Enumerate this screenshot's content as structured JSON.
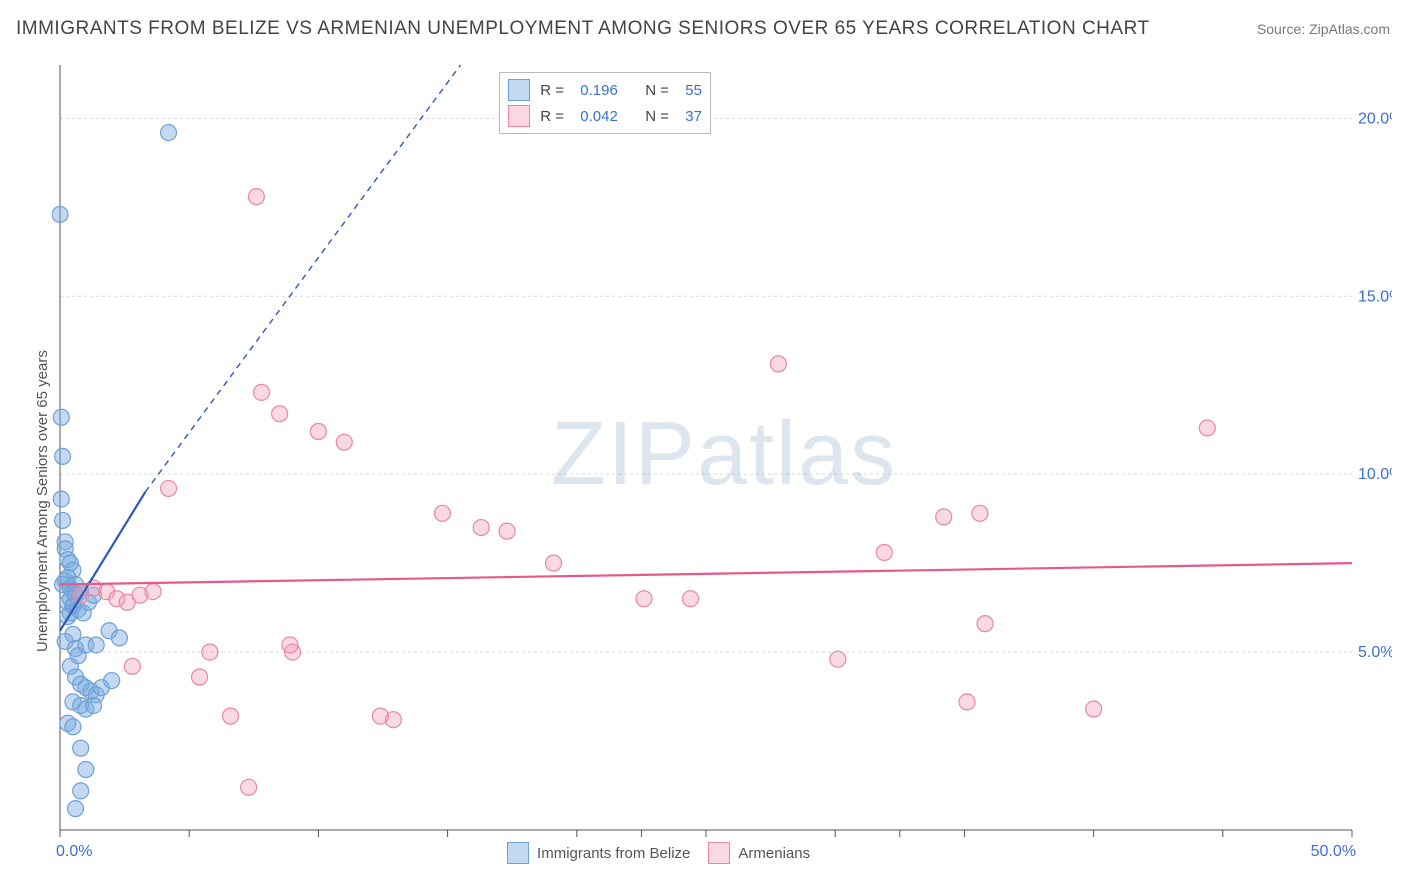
{
  "title": "IMMIGRANTS FROM BELIZE VS ARMENIAN UNEMPLOYMENT AMONG SENIORS OVER 65 YEARS CORRELATION CHART",
  "source_label": "Source: ZipAtlas.com",
  "watermark_text": "ZIPatlas",
  "ylabel": "Unemployment Among Seniors over 65 years",
  "chart": {
    "type": "scatter",
    "x_domain": [
      0,
      50
    ],
    "y_domain": [
      0,
      21.5
    ],
    "x_ticks": [
      0,
      5,
      10,
      15,
      20,
      22.5,
      25,
      30,
      32.5,
      35,
      40,
      45,
      50
    ],
    "x_tick_labels": {
      "0": "0.0%",
      "50": "50.0%"
    },
    "y_ticks": [
      5,
      10,
      15,
      20
    ],
    "y_tick_labels": {
      "5": "5.0%",
      "10": "10.0%",
      "15": "15.0%",
      "20": "20.0%"
    },
    "grid_color": "#d9d9d9",
    "axis_color": "#555555",
    "tick_label_color": "#3b6fd6",
    "background_color": "#ffffff"
  },
  "series": [
    {
      "id": "belize",
      "label": "Immigrants from Belize",
      "marker_radius": 8,
      "fill": "rgba(120,170,225,0.45)",
      "stroke": "#6fa0d6",
      "trend_stroke": "#2f59b6",
      "trend_stroke_width": 2.2,
      "trend": {
        "x1": 0,
        "y1": 5.6,
        "x2": 3.3,
        "y2": 9.5,
        "x2_dash_to": 15.5,
        "y2_dash_to": 21.5
      },
      "points": [
        [
          0,
          17.3
        ],
        [
          0.05,
          11.6
        ],
        [
          0.1,
          10.5
        ],
        [
          0.05,
          9.3
        ],
        [
          0.1,
          8.7
        ],
        [
          0.2,
          8.1
        ],
        [
          0.2,
          7.9
        ],
        [
          0.3,
          7.6
        ],
        [
          0.4,
          7.5
        ],
        [
          0.5,
          7.3
        ],
        [
          0.3,
          7.1
        ],
        [
          0.2,
          7.0
        ],
        [
          0.1,
          6.9
        ],
        [
          0.4,
          6.8
        ],
        [
          0.5,
          6.7
        ],
        [
          0.6,
          6.6
        ],
        [
          0.4,
          6.5
        ],
        [
          0.3,
          6.4
        ],
        [
          0.5,
          6.3
        ],
        [
          0.7,
          6.2
        ],
        [
          0.4,
          6.1
        ],
        [
          0.3,
          6.0
        ],
        [
          0.5,
          5.5
        ],
        [
          0.2,
          5.3
        ],
        [
          0.6,
          5.1
        ],
        [
          0.7,
          4.9
        ],
        [
          1.0,
          5.2
        ],
        [
          1.4,
          5.2
        ],
        [
          1.9,
          5.6
        ],
        [
          2.3,
          5.4
        ],
        [
          0.4,
          4.6
        ],
        [
          0.6,
          4.3
        ],
        [
          0.8,
          4.1
        ],
        [
          1.0,
          4.0
        ],
        [
          1.2,
          3.9
        ],
        [
          1.4,
          3.8
        ],
        [
          0.5,
          3.6
        ],
        [
          0.8,
          3.5
        ],
        [
          1.0,
          3.4
        ],
        [
          1.3,
          3.5
        ],
        [
          1.6,
          4.0
        ],
        [
          2.0,
          4.2
        ],
        [
          0.3,
          3.0
        ],
        [
          0.5,
          2.9
        ],
        [
          0.8,
          2.3
        ],
        [
          1.0,
          1.7
        ],
        [
          0.8,
          1.1
        ],
        [
          0.6,
          0.6
        ],
        [
          4.2,
          19.6
        ],
        [
          0.6,
          6.9
        ],
        [
          0.8,
          6.7
        ],
        [
          0.5,
          6.3
        ],
        [
          0.9,
          6.1
        ],
        [
          1.1,
          6.4
        ],
        [
          1.3,
          6.6
        ]
      ]
    },
    {
      "id": "armenian",
      "label": "Armenians",
      "marker_radius": 8,
      "fill": "rgba(245,160,185,0.40)",
      "stroke": "#e787a3",
      "trend_stroke": "#e65a87",
      "trend_stroke_width": 2.2,
      "trend": {
        "x1": 0,
        "y1": 6.9,
        "x2": 50,
        "y2": 7.5
      },
      "points": [
        [
          0.8,
          6.6
        ],
        [
          1.3,
          6.8
        ],
        [
          1.8,
          6.7
        ],
        [
          2.2,
          6.5
        ],
        [
          2.6,
          6.4
        ],
        [
          3.1,
          6.6
        ],
        [
          3.6,
          6.7
        ],
        [
          4.2,
          9.6
        ],
        [
          7.6,
          17.8
        ],
        [
          7.3,
          1.2
        ],
        [
          6.6,
          3.2
        ],
        [
          5.8,
          5.0
        ],
        [
          5.4,
          4.3
        ],
        [
          2.8,
          4.6
        ],
        [
          9.0,
          5.0
        ],
        [
          8.9,
          5.2
        ],
        [
          8.5,
          11.7
        ],
        [
          10.0,
          11.2
        ],
        [
          7.8,
          12.3
        ],
        [
          11.0,
          10.9
        ],
        [
          14.8,
          8.9
        ],
        [
          16.3,
          8.5
        ],
        [
          19.1,
          7.5
        ],
        [
          12.9,
          3.1
        ],
        [
          12.4,
          3.2
        ],
        [
          22.6,
          6.5
        ],
        [
          27.8,
          13.1
        ],
        [
          31.9,
          7.8
        ],
        [
          34.2,
          8.8
        ],
        [
          30.1,
          4.8
        ],
        [
          35.1,
          3.6
        ],
        [
          35.8,
          5.8
        ],
        [
          40.0,
          3.4
        ],
        [
          44.4,
          11.3
        ],
        [
          35.6,
          8.9
        ],
        [
          17.3,
          8.4
        ],
        [
          24.4,
          6.5
        ]
      ]
    }
  ],
  "legend_top": {
    "rows": [
      {
        "swatch_series": "belize",
        "r_label": "R =",
        "r_value": "0.196",
        "n_label": "N =",
        "n_value": "55"
      },
      {
        "swatch_series": "armenian",
        "r_label": "R =",
        "r_value": "0.042",
        "n_label": "N =",
        "n_value": "37"
      }
    ]
  },
  "legend_bottom": {
    "items": [
      {
        "swatch_series": "belize",
        "label": "Immigrants from Belize"
      },
      {
        "swatch_series": "armenian",
        "label": "Armenians"
      }
    ]
  }
}
